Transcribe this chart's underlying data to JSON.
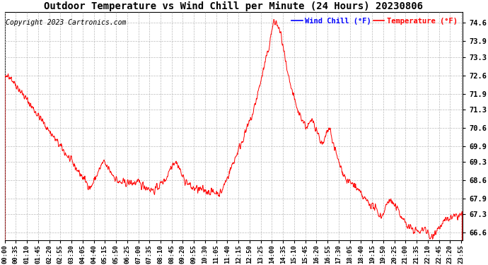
{
  "title": "Outdoor Temperature vs Wind Chill per Minute (24 Hours) 20230806",
  "copyright": "Copyright 2023 Cartronics.com",
  "legend_wind_chill": "Wind Chill (°F)",
  "legend_temperature": "Temperature (°F)",
  "wind_chill_color": "blue",
  "temperature_color": "red",
  "line_color": "red",
  "background_color": "white",
  "grid_color": "#bbbbbb",
  "title_fontsize": 10,
  "copyright_fontsize": 7,
  "legend_fontsize": 8,
  "ytick_labels": [
    "66.6",
    "67.3",
    "67.9",
    "68.6",
    "69.3",
    "69.9",
    "70.6",
    "71.3",
    "71.9",
    "72.6",
    "73.3",
    "73.9",
    "74.6"
  ],
  "ytick_values": [
    66.6,
    67.3,
    67.9,
    68.6,
    69.3,
    69.9,
    70.6,
    71.3,
    71.9,
    72.6,
    73.3,
    73.9,
    74.6
  ],
  "ymin": 66.3,
  "ymax": 75.0,
  "xtick_labels": [
    "00:00",
    "00:35",
    "01:10",
    "01:45",
    "02:20",
    "02:55",
    "03:30",
    "04:05",
    "04:40",
    "05:15",
    "05:50",
    "06:25",
    "07:00",
    "07:35",
    "08:10",
    "08:45",
    "09:20",
    "09:55",
    "10:30",
    "11:05",
    "11:40",
    "12:15",
    "12:50",
    "13:25",
    "14:00",
    "14:35",
    "15:10",
    "15:45",
    "16:20",
    "16:55",
    "17:30",
    "18:05",
    "18:40",
    "19:15",
    "19:50",
    "20:25",
    "21:00",
    "21:35",
    "22:10",
    "22:45",
    "23:20",
    "23:55"
  ]
}
